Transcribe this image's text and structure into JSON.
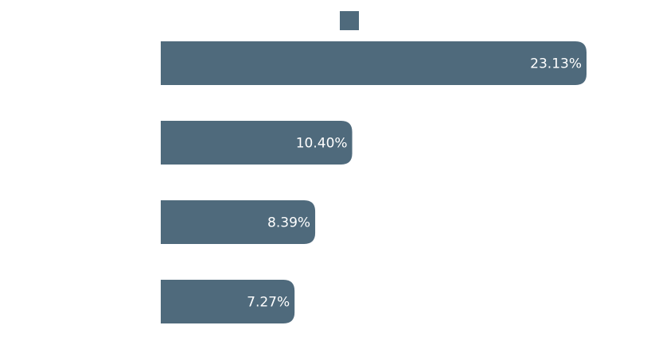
{
  "chart_data": {
    "type": "bar",
    "orientation": "horizontal",
    "categories": [
      "",
      "",
      "",
      ""
    ],
    "values": [
      23.13,
      10.4,
      8.39,
      7.27
    ],
    "data_labels": [
      "23.13%",
      "10.40%",
      "8.39%",
      "7.27%"
    ],
    "unit": "%",
    "xlim": [
      0,
      23.13
    ],
    "legend": {
      "position": "top-center",
      "entries": [
        ""
      ]
    },
    "grid": false,
    "bar_color": "#4F6A7C"
  }
}
